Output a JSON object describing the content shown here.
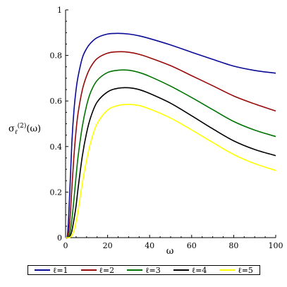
{
  "chart_data": {
    "type": "line",
    "title": "",
    "xlabel": "ω",
    "ylabel": {
      "base": "σ",
      "sub": "ℓ",
      "sup": "(2)",
      "arg": "(ω)"
    },
    "xlim": [
      0,
      100
    ],
    "ylim": [
      0,
      1
    ],
    "xticks": [
      "0",
      "20",
      "40",
      "60",
      "80",
      "100"
    ],
    "yticks": [
      "0",
      "0.2",
      "0.4",
      "0.6",
      "0.8",
      "1"
    ],
    "grid": false,
    "legend_position": "bottom",
    "x": [
      0,
      1,
      2,
      3,
      4,
      5,
      6,
      8,
      10,
      12,
      15,
      20,
      25,
      30,
      35,
      40,
      50,
      60,
      70,
      80,
      90,
      100
    ],
    "series": [
      {
        "name": "ℓ=1",
        "color": "#0a0a96",
        "values": [
          0,
          0.02,
          0.2,
          0.42,
          0.56,
          0.65,
          0.71,
          0.79,
          0.83,
          0.855,
          0.878,
          0.894,
          0.897,
          0.894,
          0.886,
          0.874,
          0.846,
          0.814,
          0.783,
          0.753,
          0.734,
          0.722
        ]
      },
      {
        "name": "ℓ=2",
        "color": "#960a0a",
        "values": [
          0,
          0.005,
          0.07,
          0.22,
          0.36,
          0.47,
          0.55,
          0.65,
          0.71,
          0.75,
          0.786,
          0.81,
          0.816,
          0.814,
          0.805,
          0.79,
          0.755,
          0.711,
          0.667,
          0.622,
          0.587,
          0.556
        ]
      },
      {
        "name": "ℓ=3",
        "color": "#007300",
        "values": [
          0,
          0.0,
          0.02,
          0.08,
          0.17,
          0.27,
          0.36,
          0.49,
          0.58,
          0.64,
          0.69,
          0.725,
          0.735,
          0.735,
          0.725,
          0.708,
          0.665,
          0.615,
          0.562,
          0.51,
          0.472,
          0.444
        ]
      },
      {
        "name": "ℓ=4",
        "color": "#000000",
        "values": [
          0,
          0.0,
          0.005,
          0.03,
          0.08,
          0.14,
          0.22,
          0.36,
          0.46,
          0.53,
          0.595,
          0.64,
          0.656,
          0.658,
          0.65,
          0.633,
          0.59,
          0.535,
          0.478,
          0.425,
          0.387,
          0.36
        ]
      },
      {
        "name": "ℓ=5",
        "color": "#ffff00",
        "values": [
          0,
          0.0,
          0.001,
          0.01,
          0.03,
          0.07,
          0.12,
          0.24,
          0.34,
          0.42,
          0.5,
          0.56,
          0.58,
          0.585,
          0.58,
          0.565,
          0.525,
          0.473,
          0.418,
          0.365,
          0.325,
          0.295
        ]
      }
    ]
  }
}
